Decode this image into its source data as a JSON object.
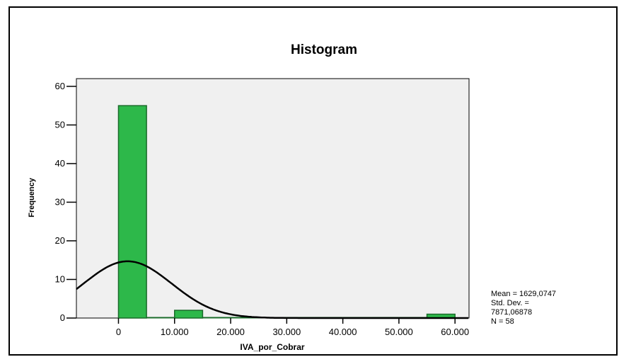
{
  "chart_data": {
    "type": "bar",
    "title": "Histogram",
    "xlabel": "IVA_por_Cobrar",
    "ylabel": "Frequency",
    "xlim": [
      -7500,
      62500
    ],
    "ylim": [
      0,
      62
    ],
    "x_ticks": [
      {
        "value": 0,
        "label": "0"
      },
      {
        "value": 10000,
        "label": "10.000"
      },
      {
        "value": 20000,
        "label": "20.000"
      },
      {
        "value": 30000,
        "label": "30.000"
      },
      {
        "value": 40000,
        "label": "40.000"
      },
      {
        "value": 50000,
        "label": "50.000"
      },
      {
        "value": 60000,
        "label": "60.000"
      }
    ],
    "y_ticks": [
      {
        "value": 0,
        "label": "0"
      },
      {
        "value": 10,
        "label": "10"
      },
      {
        "value": 20,
        "label": "20"
      },
      {
        "value": 30,
        "label": "30"
      },
      {
        "value": 40,
        "label": "40"
      },
      {
        "value": 50,
        "label": "50"
      },
      {
        "value": 60,
        "label": "60"
      }
    ],
    "bins": [
      {
        "start": 0,
        "end": 5000,
        "count": 55
      },
      {
        "start": 5000,
        "end": 10000,
        "count": 0
      },
      {
        "start": 10000,
        "end": 15000,
        "count": 2
      },
      {
        "start": 15000,
        "end": 20000,
        "count": 0
      },
      {
        "start": 20000,
        "end": 25000,
        "count": 0
      },
      {
        "start": 25000,
        "end": 30000,
        "count": 0
      },
      {
        "start": 30000,
        "end": 35000,
        "count": 0
      },
      {
        "start": 35000,
        "end": 40000,
        "count": 0
      },
      {
        "start": 40000,
        "end": 45000,
        "count": 0
      },
      {
        "start": 45000,
        "end": 50000,
        "count": 0
      },
      {
        "start": 50000,
        "end": 55000,
        "count": 0
      },
      {
        "start": 55000,
        "end": 60000,
        "count": 1
      }
    ],
    "normal_curve": {
      "mean": 1629.0747,
      "std_dev": 7871.06878,
      "n": 58,
      "bin_width": 5000
    },
    "bar_color": "#2db84a",
    "bar_edge_color": "#1a6b2a",
    "plot_background": "#f0f0f0",
    "curve_color": "#000000",
    "grid": false,
    "stats": {
      "line1": "Mean = 1629,0747",
      "line2": "Std. Dev. =",
      "line3": "7871,06878",
      "line4": "N = 58"
    }
  }
}
